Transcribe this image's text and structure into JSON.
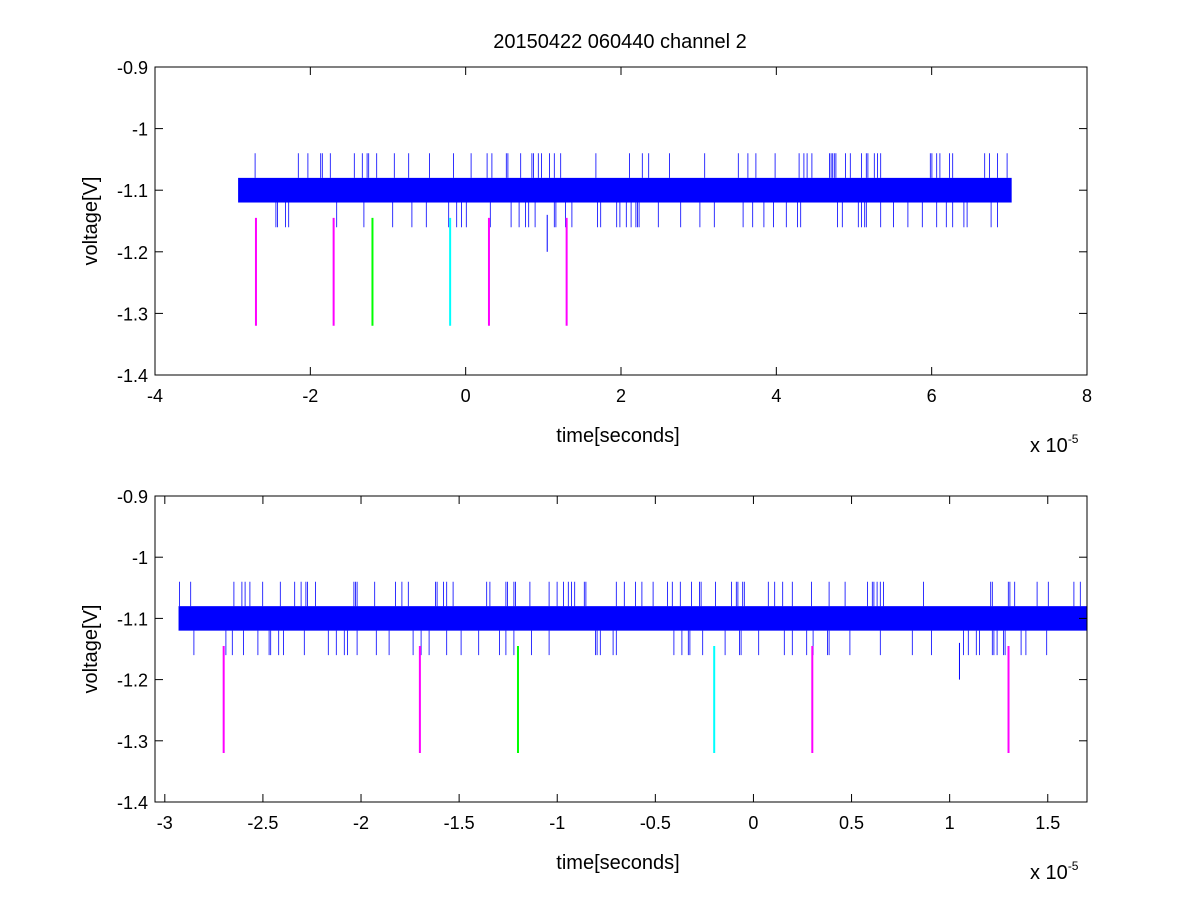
{
  "figure": {
    "title": "20150422 060440 channel 2"
  },
  "colors": {
    "signal": "#0000ff",
    "magenta": "#ff00ff",
    "green": "#00ff00",
    "cyan": "#00ffff",
    "axes": "#000000"
  },
  "chart_data": [
    {
      "type": "line",
      "title": "20150422 060440 channel 2",
      "xlabel": "time[seconds]",
      "ylabel": "voltage[V]",
      "x_multiplier_label": "x 10",
      "x_multiplier_exponent": "-5",
      "xlim": [
        -4,
        8
      ],
      "ylim": [
        -1.4,
        -0.9
      ],
      "x_ticks": [
        -4,
        -2,
        0,
        2,
        4,
        6,
        8
      ],
      "x_tick_labels": [
        "-4",
        "-2",
        "0",
        "2",
        "4",
        "6",
        "8"
      ],
      "y_ticks": [
        -1.4,
        -1.3,
        -1.2,
        -1.1,
        -1.0,
        -0.9
      ],
      "y_tick_labels": [
        "-1.4",
        "-1.3",
        "-1.2",
        "-1.1",
        "-1",
        "-0.9"
      ],
      "grid": false,
      "series": [
        {
          "kind": "signal",
          "x_range": [
            -2.93,
            7.03
          ],
          "band": [
            -1.12,
            -1.08
          ],
          "spike_range": [
            -1.16,
            -1.04
          ],
          "outlier": {
            "x": 1.05,
            "y_range": [
              -1.14,
              -1.2
            ]
          },
          "color": "#0000ff"
        },
        {
          "kind": "markers",
          "y_range": [
            -1.145,
            -1.32
          ],
          "markers": [
            {
              "x": -2.7,
              "color": "#ff00ff"
            },
            {
              "x": -1.7,
              "color": "#ff00ff"
            },
            {
              "x": -1.2,
              "color": "#00ff00"
            },
            {
              "x": -0.2,
              "color": "#00ffff"
            },
            {
              "x": 0.3,
              "color": "#ff00ff"
            },
            {
              "x": 1.3,
              "color": "#ff00ff"
            }
          ]
        }
      ]
    },
    {
      "type": "line",
      "title": "",
      "xlabel": "time[seconds]",
      "ylabel": "voltage[V]",
      "x_multiplier_label": "x 10",
      "x_multiplier_exponent": "-5",
      "xlim": [
        -3.05,
        1.7
      ],
      "ylim": [
        -1.4,
        -0.9
      ],
      "x_ticks": [
        -3,
        -2.5,
        -2,
        -1.5,
        -1,
        -0.5,
        0,
        0.5,
        1,
        1.5
      ],
      "x_tick_labels": [
        "-3",
        "-2.5",
        "-2",
        "-1.5",
        "-1",
        "-0.5",
        "0",
        "0.5",
        "1",
        "1.5"
      ],
      "y_ticks": [
        -1.4,
        -1.3,
        -1.2,
        -1.1,
        -1.0,
        -0.9
      ],
      "y_tick_labels": [
        "-1.4",
        "-1.3",
        "-1.2",
        "-1.1",
        "-1",
        "-0.9"
      ],
      "grid": false,
      "series": [
        {
          "kind": "signal",
          "x_range": [
            -2.93,
            1.7
          ],
          "band": [
            -1.12,
            -1.08
          ],
          "spike_range": [
            -1.16,
            -1.04
          ],
          "outlier": {
            "x": 1.05,
            "y_range": [
              -1.14,
              -1.2
            ]
          },
          "color": "#0000ff"
        },
        {
          "kind": "markers",
          "y_range": [
            -1.145,
            -1.32
          ],
          "markers": [
            {
              "x": -2.7,
              "color": "#ff00ff"
            },
            {
              "x": -1.7,
              "color": "#ff00ff"
            },
            {
              "x": -1.2,
              "color": "#00ff00"
            },
            {
              "x": -0.2,
              "color": "#00ffff"
            },
            {
              "x": 0.3,
              "color": "#ff00ff"
            },
            {
              "x": 1.3,
              "color": "#ff00ff"
            }
          ]
        }
      ]
    }
  ]
}
